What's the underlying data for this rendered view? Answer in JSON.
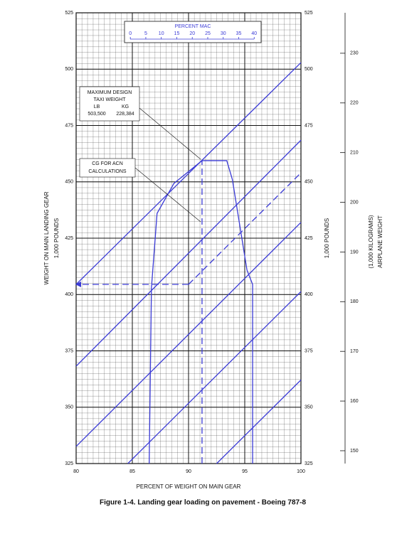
{
  "chart_data": {
    "type": "line",
    "caption": "Figure 1-4.    Landing gear loading on pavement - Boeing 787-8",
    "xlabel": "PERCENT OF WEIGHT ON MAIN GEAR",
    "ylabel": [
      "WEIGHT ON MAIN LANDING GEAR",
      "1,000 POUNDS"
    ],
    "y_right_label": "1,000 POUNDS",
    "y2label": [
      "(1,000 KILOGRAMS)",
      "AIRPLANE WEIGHT"
    ],
    "x2label": "PERCENT MAC",
    "xlim": [
      80,
      100
    ],
    "xticks": [
      80,
      85,
      90,
      95,
      100
    ],
    "ylim": [
      325,
      525
    ],
    "yticks": [
      325,
      350,
      375,
      400,
      425,
      450,
      475,
      500,
      525
    ],
    "y2lim": [
      147.42,
      238.14
    ],
    "y2ticks": [
      150,
      160,
      170,
      180,
      190,
      200,
      210,
      220,
      230
    ],
    "x2lim": [
      -17.5,
      55.1
    ],
    "x2ticks": [
      0,
      5,
      10,
      15,
      20,
      25,
      30,
      35,
      40
    ],
    "grid": true,
    "series": [
      {
        "color": "#3b3bd6",
        "x": [
          86.5,
          86.7,
          87.2,
          88.7,
          91.2,
          93.4,
          93.9,
          95.2,
          95.7,
          95.7
        ],
        "values": [
          325,
          403,
          436,
          449.3,
          459.4,
          459.4,
          451,
          410.8,
          404.5,
          325
        ]
      },
      {
        "color": "#3b3bd6",
        "x": [
          80,
          100
        ],
        "values": [
          404.5,
          502.9
        ]
      },
      {
        "color": "#3b3bd6",
        "x": [
          80,
          100
        ],
        "values": [
          368.2,
          468.5
        ]
      },
      {
        "color": "#3b3bd6",
        "x": [
          80,
          100
        ],
        "values": [
          332.6,
          432
        ]
      },
      {
        "color": "#3b3bd6",
        "x": [
          84.6,
          100
        ],
        "values": [
          325,
          401.3
        ]
      },
      {
        "color": "#3b3bd6",
        "x": [
          92.5,
          100
        ],
        "values": [
          325,
          362.1
        ]
      },
      {
        "color": "#3b3bd6",
        "dashed": true,
        "x": [
          91.2,
          91.2
        ],
        "values": [
          325,
          459.4
        ]
      },
      {
        "color": "#3b3bd6",
        "dashed": true,
        "x": [
          90,
          100
        ],
        "values": [
          404.5,
          454
        ]
      },
      {
        "color": "#3b3bd6",
        "dashed": true,
        "arrow": "end",
        "x": [
          90,
          80
        ],
        "values": [
          404.5,
          404.5
        ]
      }
    ],
    "annotations": [
      {
        "lines": [
          "MAXIMUM DESIGN",
          "TAXI WEIGHT"
        ],
        "columns": [
          [
            "LB",
            "503,500"
          ],
          [
            "KG",
            "228,384"
          ]
        ]
      },
      {
        "lines": [
          "CG FOR ACN",
          "CALCULATIONS"
        ]
      }
    ]
  }
}
